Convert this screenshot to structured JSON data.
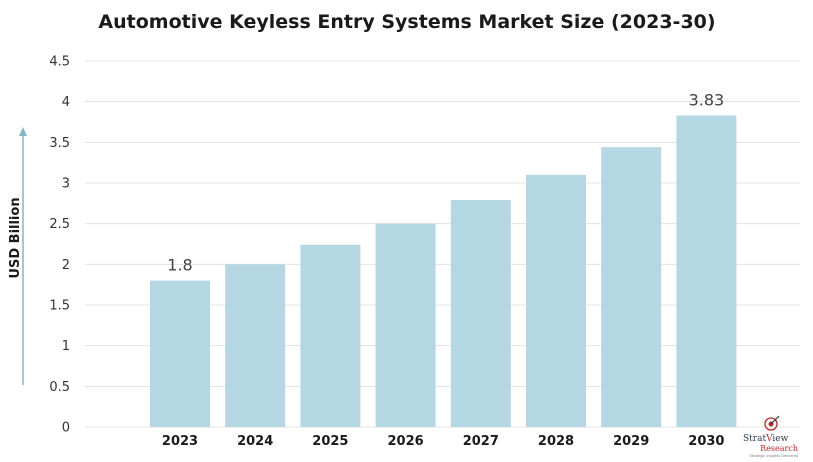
{
  "chart_data": {
    "type": "bar",
    "title": "Automotive Keyless Entry Systems Market Size (2023-30)",
    "ylabel": "USD Billion",
    "xlabel": "",
    "categories": [
      "2023",
      "2024",
      "2025",
      "2026",
      "2027",
      "2028",
      "2029",
      "2030"
    ],
    "values": [
      1.8,
      2.0,
      2.24,
      2.5,
      2.79,
      3.1,
      3.44,
      3.83
    ],
    "data_labels": [
      {
        "index": 0,
        "text": "1.8"
      },
      {
        "index": 7,
        "text": "3.83"
      }
    ],
    "ylim": [
      0,
      4.5
    ],
    "yticks": [
      "0",
      "0.5",
      "1",
      "1.5",
      "2",
      "2.5",
      "3",
      "3.5",
      "4",
      "4.5"
    ],
    "grid": true,
    "legend": "none",
    "colors": {
      "bar": "#b5d6e3",
      "grid": "#e3e3e3",
      "arrow": "#7fb9c9"
    }
  },
  "logo": {
    "name_prefix": "Strat",
    "name_suffix": "iew",
    "line2": "Research",
    "tagline": "Strategic Insights Delivered"
  }
}
